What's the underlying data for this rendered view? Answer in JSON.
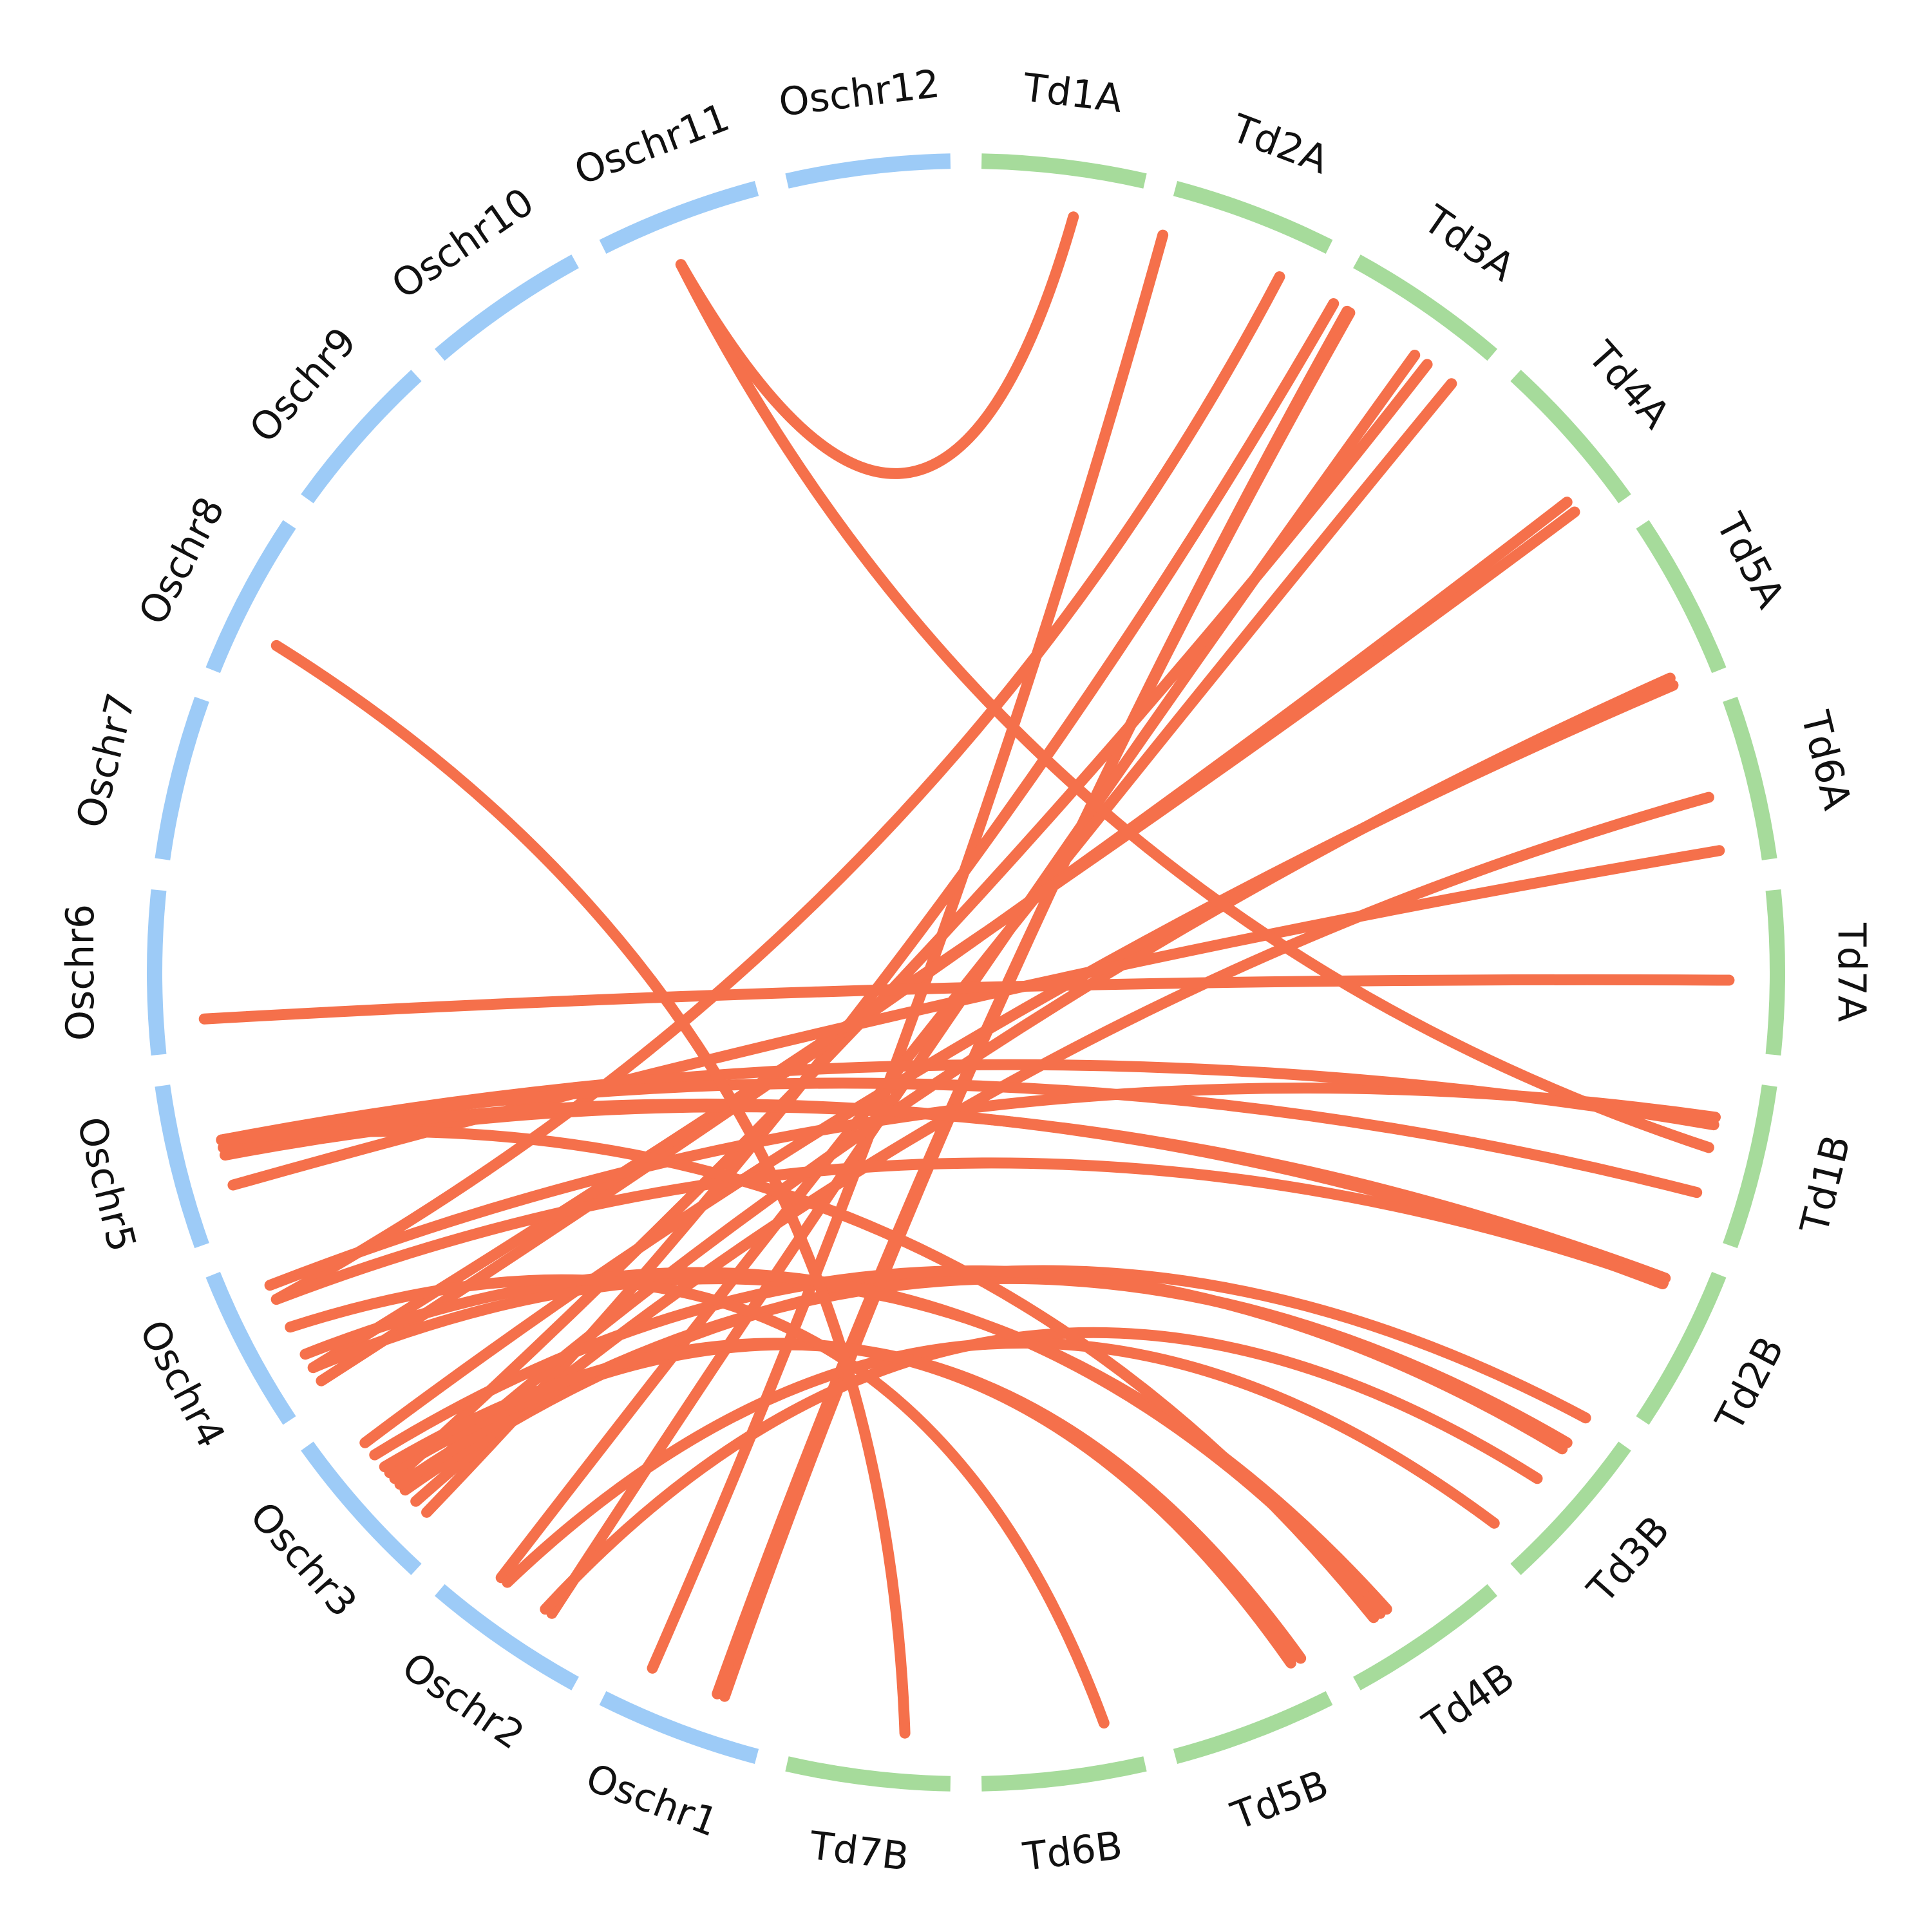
{
  "chart_data": {
    "type": "circos",
    "chromosomes": [
      {
        "id": "Oschr1",
        "label": "Oschr1",
        "group": "rice"
      },
      {
        "id": "Oschr2",
        "label": "Oschr2",
        "group": "rice"
      },
      {
        "id": "Oschr3",
        "label": "Oschr3",
        "group": "rice"
      },
      {
        "id": "Oschr4",
        "label": "Oschr4",
        "group": "rice"
      },
      {
        "id": "Oschr5",
        "label": "Oschr5",
        "group": "rice"
      },
      {
        "id": "Oschr6",
        "label": "Oschr6",
        "group": "rice"
      },
      {
        "id": "Oschr7",
        "label": "Oschr7",
        "group": "rice"
      },
      {
        "id": "Oschr8",
        "label": "Oschr8",
        "group": "rice"
      },
      {
        "id": "Oschr9",
        "label": "Oschr9",
        "group": "rice"
      },
      {
        "id": "Oschr10",
        "label": "Oschr10",
        "group": "rice"
      },
      {
        "id": "Oschr11",
        "label": "Oschr11",
        "group": "rice"
      },
      {
        "id": "Oschr12",
        "label": "Oschr12",
        "group": "rice"
      },
      {
        "id": "Td1A",
        "label": "Td1A",
        "group": "wheat"
      },
      {
        "id": "Td2A",
        "label": "Td2A",
        "group": "wheat"
      },
      {
        "id": "Td3A",
        "label": "Td3A",
        "group": "wheat"
      },
      {
        "id": "Td4A",
        "label": "Td4A",
        "group": "wheat"
      },
      {
        "id": "Td5A",
        "label": "Td5A",
        "group": "wheat"
      },
      {
        "id": "Td6A",
        "label": "Td6A",
        "group": "wheat"
      },
      {
        "id": "Td7A",
        "label": "Td7A",
        "group": "wheat"
      },
      {
        "id": "Td1B",
        "label": "Td1B",
        "group": "wheat"
      },
      {
        "id": "Td2B",
        "label": "Td2B",
        "group": "wheat"
      },
      {
        "id": "Td3B",
        "label": "Td3B",
        "group": "wheat"
      },
      {
        "id": "Td4B",
        "label": "Td4B",
        "group": "wheat"
      },
      {
        "id": "Td5B",
        "label": "Td5B",
        "group": "wheat"
      },
      {
        "id": "Td6B",
        "label": "Td6B",
        "group": "wheat"
      },
      {
        "id": "Td7B",
        "label": "Td7B",
        "group": "wheat"
      }
    ],
    "links": [
      {
        "from": "Td1A",
        "from_pos": 0.6,
        "to": "Oschr11",
        "to_pos": 0.4
      },
      {
        "from": "Td2A",
        "from_pos": 0.0,
        "to": "Oschr1",
        "to_pos": 0.8
      },
      {
        "from": "Td2A",
        "from_pos": 0.8,
        "to": "Oschr4",
        "to_pos": 0.7
      },
      {
        "from": "Td3A",
        "from_pos": 0.0,
        "to": "Oschr3",
        "to_pos": 0.2
      },
      {
        "from": "Td3A",
        "from_pos": 0.1,
        "to": "Oschr1",
        "to_pos": 0.3
      },
      {
        "from": "Td3A",
        "from_pos": 0.12,
        "to": "Oschr1",
        "to_pos": 0.35
      },
      {
        "from": "Td3A",
        "from_pos": 0.62,
        "to": "Oschr2",
        "to_pos": 0.35
      },
      {
        "from": "Td3A",
        "from_pos": 0.72,
        "to": "Oschr3",
        "to_pos": 0.5
      },
      {
        "from": "Td3A",
        "from_pos": 0.92,
        "to": "Oschr2",
        "to_pos": 0.75
      },
      {
        "from": "Td4A",
        "from_pos": 0.8,
        "to": "Oschr4",
        "to_pos": 0.1
      },
      {
        "from": "Td4A",
        "from_pos": 0.88,
        "to": "Oschr4",
        "to_pos": 0.2
      },
      {
        "from": "Td5A",
        "from_pos": 0.93,
        "to": "Oschr3",
        "to_pos": 0.4
      },
      {
        "from": "Td5A",
        "from_pos": 0.98,
        "to": "Oschr3",
        "to_pos": 0.8
      },
      {
        "from": "Td6A",
        "from_pos": 0.55,
        "to": "Oschr3",
        "to_pos": 0.3
      },
      {
        "from": "Td6A",
        "from_pos": 0.9,
        "to": "Oschr5",
        "to_pos": 0.3
      },
      {
        "from": "Td7A",
        "from_pos": 0.55,
        "to": "Oschr6",
        "to_pos": 0.2
      },
      {
        "from": "Td1B",
        "from_pos": 0.25,
        "to": "Oschr4",
        "to_pos": 0.8
      },
      {
        "from": "Td1B",
        "from_pos": 0.3,
        "to": "Oschr5",
        "to_pos": 0.6
      },
      {
        "from": "Td1B",
        "from_pos": 0.45,
        "to": "Oschr11",
        "to_pos": 0.4
      },
      {
        "from": "Td1B",
        "from_pos": 0.75,
        "to": "Oschr5",
        "to_pos": 0.6
      },
      {
        "from": "Td2B",
        "from_pos": 0.15,
        "to": "Oschr5",
        "to_pos": 0.5
      },
      {
        "from": "Td2B",
        "from_pos": 0.18,
        "to": "Oschr4",
        "to_pos": 0.7
      },
      {
        "from": "Td2B",
        "from_pos": 0.19,
        "to": "Oschr5",
        "to_pos": 0.55
      },
      {
        "from": "Td3B",
        "from_pos": 0.0,
        "to": "Oschr3",
        "to_pos": 0.4
      },
      {
        "from": "Td3B",
        "from_pos": 0.2,
        "to": "Oschr3",
        "to_pos": 0.45
      },
      {
        "from": "Td3B",
        "from_pos": 0.25,
        "to": "Oschr3",
        "to_pos": 0.7
      },
      {
        "from": "Td3B",
        "from_pos": 0.5,
        "to": "Oschr2",
        "to_pos": 0.4
      },
      {
        "from": "Td3B",
        "from_pos": 0.9,
        "to": "Oschr2",
        "to_pos": 0.7
      },
      {
        "from": "Td4B",
        "from_pos": 0.6,
        "to": "Oschr4",
        "to_pos": 0.2
      },
      {
        "from": "Td4B",
        "from_pos": 0.65,
        "to": "Oschr4",
        "to_pos": 0.3
      },
      {
        "from": "Td4B",
        "from_pos": 0.7,
        "to": "Oschr5",
        "to_pos": 0.6
      },
      {
        "from": "Td5B",
        "from_pos": 0.05,
        "to": "Oschr3",
        "to_pos": 0.55
      },
      {
        "from": "Td5B",
        "from_pos": 0.12,
        "to": "Oschr3",
        "to_pos": 0.6
      },
      {
        "from": "Td6B",
        "from_pos": 0.2,
        "to": "Oschr4",
        "to_pos": 0.5
      },
      {
        "from": "Td7B",
        "from_pos": 0.3,
        "to": "Oschr8",
        "to_pos": 0.3
      }
    ],
    "colors": {
      "rice_arc": "#9dcbf7",
      "wheat_arc": "#a6db9b",
      "link": "#f5704b",
      "label": "#111111"
    }
  }
}
